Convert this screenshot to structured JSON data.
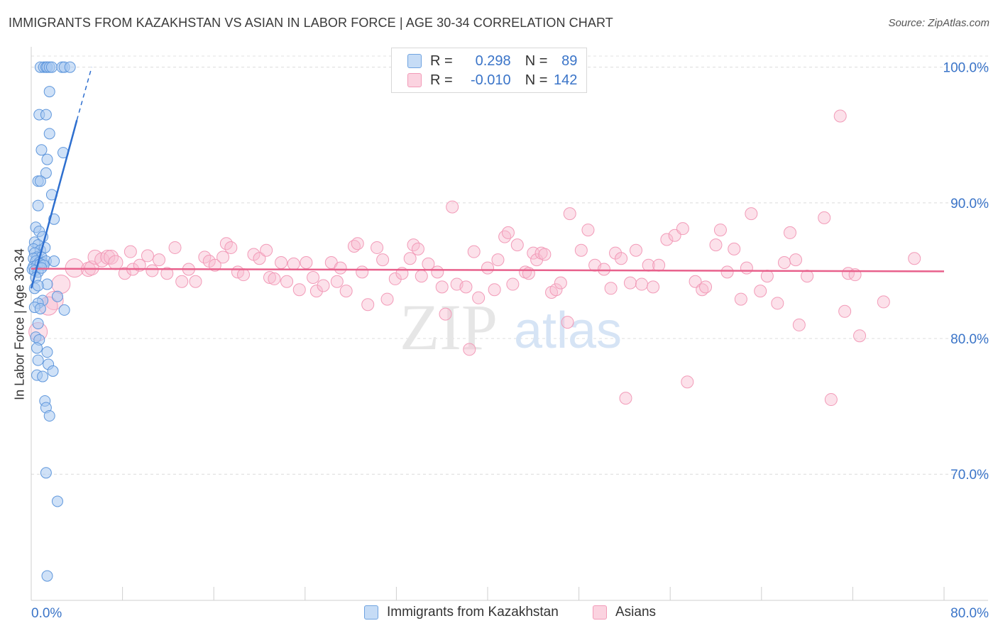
{
  "title": "IMMIGRANTS FROM KAZAKHSTAN VS ASIAN IN LABOR FORCE | AGE 30-34 CORRELATION CHART",
  "source": "Source: ZipAtlas.com",
  "watermark": {
    "zip": "ZIP",
    "atlas": "atlas"
  },
  "stats_legend": {
    "rows": [
      {
        "r_label": "R =",
        "r_value": "0.298",
        "n_label": "N =",
        "n_value": "89",
        "color": "#a8c8f0"
      },
      {
        "r_label": "R =",
        "r_value": "-0.010",
        "n_label": "N =",
        "n_value": "142",
        "color": "#f8bcd0"
      }
    ]
  },
  "chart_data": {
    "type": "scatter",
    "title": "IMMIGRANTS FROM KAZAKHSTAN VS ASIAN IN LABOR FORCE | AGE 30-34 CORRELATION CHART",
    "xlabel": "",
    "ylabel": "In Labor Force | Age 30-34",
    "xlim": [
      0,
      80
    ],
    "ylim": [
      60.7,
      101.5
    ],
    "x_tick_labels": [
      "0.0%",
      "80.0%"
    ],
    "y_ticks": [
      70,
      80,
      90,
      100
    ],
    "y_tick_labels": [
      "70.0%",
      "80.0%",
      "90.0%",
      "100.0%"
    ],
    "grid": true,
    "legend_position": "bottom",
    "colors": {
      "kazakhstan": "#6fa3e0",
      "asians": "#f29bb8",
      "kaz_line": "#2e6fcf",
      "asian_line": "#e8618c"
    },
    "series": [
      {
        "name": "Immigrants from Kazakhstan",
        "trend": {
          "x": [
            0.0,
            4.0
          ],
          "y": [
            83.7,
            96.1
          ],
          "dashed_to": [
            5.3,
            100.0
          ]
        },
        "points": [
          [
            0.8,
            100
          ],
          [
            1.1,
            100
          ],
          [
            1.3,
            100
          ],
          [
            1.4,
            100
          ],
          [
            1.6,
            100
          ],
          [
            1.8,
            100
          ],
          [
            2.7,
            100
          ],
          [
            2.9,
            100
          ],
          [
            3.4,
            100
          ],
          [
            1.6,
            98.2
          ],
          [
            0.7,
            96.5
          ],
          [
            1.3,
            96.5
          ],
          [
            1.6,
            95.1
          ],
          [
            0.9,
            93.9
          ],
          [
            2.8,
            93.7
          ],
          [
            1.4,
            93.2
          ],
          [
            1.3,
            92.2
          ],
          [
            0.6,
            91.6
          ],
          [
            0.8,
            91.6
          ],
          [
            1.8,
            90.6
          ],
          [
            0.6,
            89.8
          ],
          [
            2.0,
            88.8
          ],
          [
            0.4,
            88.2
          ],
          [
            0.7,
            87.9
          ],
          [
            1.0,
            87.5
          ],
          [
            0.3,
            87.1
          ],
          [
            0.6,
            86.9
          ],
          [
            0.2,
            86.6
          ],
          [
            0.8,
            86.5
          ],
          [
            1.2,
            86.7
          ],
          [
            0.3,
            86.3
          ],
          [
            0.5,
            86.0
          ],
          [
            0.9,
            86.0
          ],
          [
            0.2,
            85.9
          ],
          [
            0.4,
            85.7
          ],
          [
            0.7,
            85.6
          ],
          [
            1.0,
            85.6
          ],
          [
            1.3,
            85.7
          ],
          [
            2.0,
            85.7
          ],
          [
            0.2,
            85.3
          ],
          [
            0.5,
            85.4
          ],
          [
            0.8,
            85.5
          ],
          [
            1.1,
            85.4
          ],
          [
            0.1,
            85.1
          ],
          [
            0.3,
            85.0
          ],
          [
            0.6,
            84.9
          ],
          [
            0.9,
            85.2
          ],
          [
            0.4,
            84.5
          ],
          [
            1.4,
            84.0
          ],
          [
            0.3,
            83.7
          ],
          [
            0.6,
            83.9
          ],
          [
            2.3,
            83.1
          ],
          [
            1.0,
            82.8
          ],
          [
            0.6,
            82.6
          ],
          [
            0.3,
            82.3
          ],
          [
            0.8,
            82.2
          ],
          [
            2.9,
            82.1
          ],
          [
            0.6,
            81.1
          ],
          [
            0.4,
            80.1
          ],
          [
            0.7,
            79.9
          ],
          [
            0.5,
            79.3
          ],
          [
            1.4,
            79.0
          ],
          [
            0.6,
            78.4
          ],
          [
            1.5,
            78.1
          ],
          [
            1.9,
            77.6
          ],
          [
            0.5,
            77.3
          ],
          [
            1.0,
            77.2
          ],
          [
            1.2,
            75.4
          ],
          [
            1.3,
            74.9
          ],
          [
            1.6,
            74.3
          ],
          [
            1.3,
            70.1
          ],
          [
            2.3,
            68.0
          ],
          [
            1.4,
            62.5
          ]
        ]
      },
      {
        "name": "Asians",
        "trend": {
          "x": [
            0.0,
            80.0
          ],
          "y": [
            85.15,
            84.95
          ]
        },
        "points": [
          [
            2.6,
            84.0
          ],
          [
            2.0,
            82.8
          ],
          [
            1.5,
            82.4
          ],
          [
            0.6,
            80.5
          ],
          [
            3.8,
            85.2
          ],
          [
            5.0,
            85.1
          ],
          [
            5.3,
            85.2
          ],
          [
            5.6,
            86.0
          ],
          [
            6.2,
            85.8
          ],
          [
            6.7,
            86.0
          ],
          [
            7.0,
            86.0
          ],
          [
            7.4,
            85.6
          ],
          [
            8.2,
            84.8
          ],
          [
            8.7,
            86.4
          ],
          [
            8.9,
            85.1
          ],
          [
            9.5,
            85.4
          ],
          [
            10.2,
            86.1
          ],
          [
            10.6,
            85.0
          ],
          [
            11.2,
            85.8
          ],
          [
            11.9,
            84.8
          ],
          [
            12.6,
            86.7
          ],
          [
            13.2,
            84.2
          ],
          [
            13.8,
            85.1
          ],
          [
            14.4,
            84.2
          ],
          [
            15.2,
            86.0
          ],
          [
            15.6,
            85.7
          ],
          [
            16.1,
            85.4
          ],
          [
            16.8,
            86.0
          ],
          [
            17.1,
            87.0
          ],
          [
            17.5,
            86.7
          ],
          [
            18.1,
            84.9
          ],
          [
            18.6,
            84.7
          ],
          [
            19.5,
            86.2
          ],
          [
            20.0,
            85.9
          ],
          [
            20.6,
            86.5
          ],
          [
            20.9,
            84.5
          ],
          [
            21.3,
            84.4
          ],
          [
            21.9,
            85.6
          ],
          [
            22.4,
            84.2
          ],
          [
            23.0,
            85.5
          ],
          [
            23.5,
            83.6
          ],
          [
            24.1,
            85.6
          ],
          [
            24.7,
            84.5
          ],
          [
            25.0,
            83.5
          ],
          [
            25.6,
            83.9
          ],
          [
            26.3,
            85.6
          ],
          [
            26.8,
            84.2
          ],
          [
            27.1,
            85.2
          ],
          [
            27.6,
            83.5
          ],
          [
            28.3,
            86.8
          ],
          [
            28.6,
            87.0
          ],
          [
            29.0,
            84.9
          ],
          [
            29.5,
            82.5
          ],
          [
            30.3,
            86.7
          ],
          [
            30.8,
            85.8
          ],
          [
            31.2,
            82.9
          ],
          [
            31.9,
            84.4
          ],
          [
            32.5,
            84.8
          ],
          [
            33.2,
            85.9
          ],
          [
            33.5,
            86.9
          ],
          [
            33.9,
            86.6
          ],
          [
            34.2,
            84.6
          ],
          [
            34.8,
            85.5
          ],
          [
            35.6,
            84.9
          ],
          [
            36.0,
            83.8
          ],
          [
            36.3,
            81.8
          ],
          [
            36.9,
            89.7
          ],
          [
            37.3,
            84.0
          ],
          [
            38.1,
            83.8
          ],
          [
            38.4,
            79.2
          ],
          [
            38.8,
            86.4
          ],
          [
            39.2,
            83.0
          ],
          [
            40.0,
            85.2
          ],
          [
            40.6,
            83.6
          ],
          [
            40.9,
            85.8
          ],
          [
            41.5,
            87.5
          ],
          [
            41.8,
            87.8
          ],
          [
            42.2,
            84.0
          ],
          [
            42.6,
            86.9
          ],
          [
            43.3,
            84.9
          ],
          [
            43.6,
            84.8
          ],
          [
            44.0,
            86.3
          ],
          [
            44.3,
            85.8
          ],
          [
            44.7,
            86.3
          ],
          [
            45.0,
            86.2
          ],
          [
            45.6,
            83.4
          ],
          [
            46.0,
            83.6
          ],
          [
            46.4,
            84.1
          ],
          [
            47.0,
            81.2
          ],
          [
            47.2,
            89.2
          ],
          [
            48.2,
            86.5
          ],
          [
            48.8,
            88.0
          ],
          [
            49.4,
            85.4
          ],
          [
            50.2,
            85.1
          ],
          [
            50.8,
            83.7
          ],
          [
            51.2,
            86.3
          ],
          [
            51.7,
            85.9
          ],
          [
            52.1,
            75.6
          ],
          [
            52.5,
            84.1
          ],
          [
            53.0,
            86.5
          ],
          [
            53.5,
            84.0
          ],
          [
            54.1,
            85.4
          ],
          [
            54.5,
            83.8
          ],
          [
            55.0,
            85.4
          ],
          [
            55.7,
            87.3
          ],
          [
            56.4,
            87.6
          ],
          [
            57.1,
            88.1
          ],
          [
            57.5,
            76.8
          ],
          [
            58.2,
            84.2
          ],
          [
            58.8,
            83.6
          ],
          [
            59.1,
            83.8
          ],
          [
            60.0,
            86.9
          ],
          [
            60.4,
            88.0
          ],
          [
            61.0,
            84.9
          ],
          [
            61.6,
            86.6
          ],
          [
            62.2,
            82.9
          ],
          [
            62.7,
            85.2
          ],
          [
            63.1,
            89.2
          ],
          [
            63.9,
            83.5
          ],
          [
            64.5,
            84.6
          ],
          [
            65.4,
            82.6
          ],
          [
            66.0,
            85.6
          ],
          [
            66.5,
            87.8
          ],
          [
            67.0,
            85.8
          ],
          [
            67.3,
            81.0
          ],
          [
            68.0,
            84.6
          ],
          [
            69.5,
            88.9
          ],
          [
            70.1,
            75.5
          ],
          [
            70.9,
            96.4
          ],
          [
            71.3,
            82.0
          ],
          [
            71.6,
            84.8
          ],
          [
            72.2,
            84.7
          ],
          [
            72.6,
            80.2
          ],
          [
            74.7,
            82.7
          ],
          [
            77.4,
            85.9
          ]
        ]
      }
    ]
  },
  "bottom_legend": [
    {
      "label": "Immigrants from Kazakhstan",
      "color": "#a8c8f0"
    },
    {
      "label": "Asians",
      "color": "#f8bcd0"
    }
  ]
}
